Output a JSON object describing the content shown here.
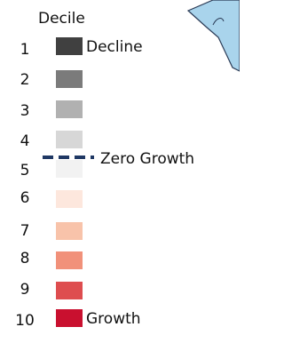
{
  "legend": {
    "title": "Decile",
    "items": [
      {
        "label": "1",
        "color": "#404040",
        "note": "Decline"
      },
      {
        "label": "2",
        "color": "#7b7b7b"
      },
      {
        "label": "3",
        "color": "#b1b1b1"
      },
      {
        "label": "4",
        "color": "#d7d7d7"
      },
      {
        "label": "5",
        "color": "#f2f2f2"
      },
      {
        "label": "6",
        "color": "#fde7dd"
      },
      {
        "label": "7",
        "color": "#f8c3aa"
      },
      {
        "label": "8",
        "color": "#f1917a"
      },
      {
        "label": "9",
        "color": "#de4d4f"
      },
      {
        "label": "10",
        "color": "#c9102f",
        "note": "Growth"
      }
    ],
    "zero_label": "Zero Growth"
  }
}
